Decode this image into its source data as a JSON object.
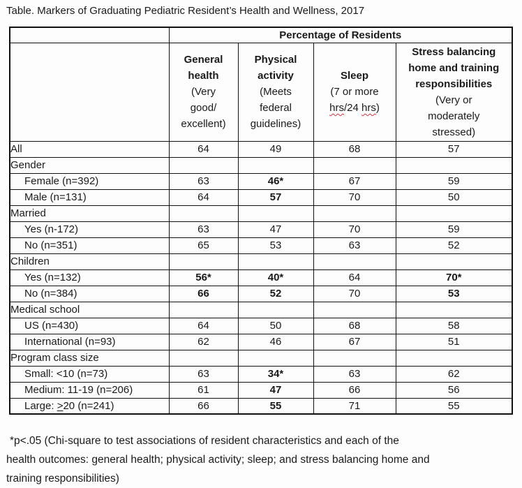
{
  "title": "Table. Markers of Graduating Pediatric Resident’s Health and Wellness, 2017",
  "table": {
    "spanner": "Percentage of Residents",
    "columns": [
      {
        "id": "general-health",
        "title": "General\nhealth",
        "subtitle": "(Very\ngood/\nexcellent)"
      },
      {
        "id": "physical-activity",
        "title": "Physical\nactivity",
        "subtitle": "(Meets\nfederal\nguidelines)"
      },
      {
        "id": "sleep",
        "title": "Sleep",
        "subtitle": "(7 or more\nhrs/24 hrs)",
        "misspelled_word": "hrs"
      },
      {
        "id": "stress-balancing",
        "title": "Stress balancing\nhome and training\nresponsibilities",
        "subtitle": "(Very or\nmoderately\nstressed)"
      }
    ],
    "rows": [
      {
        "label": "All",
        "section": false,
        "indent": false,
        "values": [
          "64",
          "49",
          "68",
          "57"
        ],
        "bold": [
          0,
          0,
          0,
          0
        ]
      },
      {
        "label": "Gender",
        "section": true,
        "indent": false,
        "values": [
          "",
          "",
          "",
          ""
        ],
        "bold": [
          0,
          0,
          0,
          0
        ]
      },
      {
        "label": "Female (n=392)",
        "section": false,
        "indent": true,
        "values": [
          "63",
          "46*",
          "67",
          "59"
        ],
        "bold": [
          0,
          1,
          0,
          0
        ]
      },
      {
        "label": "Male (n=131)",
        "section": false,
        "indent": true,
        "values": [
          "64",
          "57",
          "70",
          "50"
        ],
        "bold": [
          0,
          1,
          0,
          0
        ]
      },
      {
        "label": "Married",
        "section": true,
        "indent": false,
        "values": [
          "",
          "",
          "",
          ""
        ],
        "bold": [
          0,
          0,
          0,
          0
        ]
      },
      {
        "label": "Yes (n-172)",
        "section": false,
        "indent": true,
        "values": [
          "63",
          "47",
          "70",
          "59"
        ],
        "bold": [
          0,
          0,
          0,
          0
        ]
      },
      {
        "label": "No (n=351)",
        "section": false,
        "indent": true,
        "values": [
          "65",
          "53",
          "63",
          "52"
        ],
        "bold": [
          0,
          0,
          0,
          0
        ]
      },
      {
        "label": "Children",
        "section": true,
        "indent": false,
        "values": [
          "",
          "",
          "",
          ""
        ],
        "bold": [
          0,
          0,
          0,
          0
        ]
      },
      {
        "label": "Yes (n=132)",
        "section": false,
        "indent": true,
        "values": [
          "56*",
          "40*",
          "64",
          "70*"
        ],
        "bold": [
          1,
          1,
          0,
          1
        ]
      },
      {
        "label": "No (n=384)",
        "section": false,
        "indent": true,
        "values": [
          "66",
          "52",
          "70",
          "53"
        ],
        "bold": [
          1,
          1,
          0,
          1
        ]
      },
      {
        "label": "Medical school",
        "section": true,
        "indent": false,
        "values": [
          "",
          "",
          "",
          ""
        ],
        "bold": [
          0,
          0,
          0,
          0
        ]
      },
      {
        "label": "US (n=430)",
        "section": false,
        "indent": true,
        "values": [
          "64",
          "50",
          "68",
          "58"
        ],
        "bold": [
          0,
          0,
          0,
          0
        ]
      },
      {
        "label": "International (n=93)",
        "section": false,
        "indent": true,
        "values": [
          "62",
          "46",
          "67",
          "51"
        ],
        "bold": [
          0,
          0,
          0,
          0
        ]
      },
      {
        "label": "Program class size",
        "section": true,
        "indent": false,
        "values": [
          "",
          "",
          "",
          ""
        ],
        "bold": [
          0,
          0,
          0,
          0
        ]
      },
      {
        "label": "Small: <10 (n=73)",
        "section": false,
        "indent": true,
        "values": [
          "63",
          "34*",
          "63",
          "62"
        ],
        "bold": [
          0,
          1,
          0,
          0
        ]
      },
      {
        "label": "Medium: 11-19 (n=206)",
        "section": false,
        "indent": true,
        "values": [
          "61",
          "47",
          "66",
          "56"
        ],
        "bold": [
          0,
          1,
          0,
          0
        ]
      },
      {
        "label": "Large: >20 (n=241)",
        "section": false,
        "indent": true,
        "underline_char": ">",
        "values": [
          "66",
          "55",
          "71",
          "55"
        ],
        "bold": [
          0,
          1,
          0,
          0
        ]
      }
    ]
  },
  "footnote": {
    "lines": [
      "*p<.05 (Chi-square to test associations of resident characteristics and each of the",
      "health outcomes: general health; physical activity; sleep; and stress balancing home and",
      "training responsibilities)"
    ]
  },
  "colors": {
    "text": "#1a1a1a",
    "border": "#111111",
    "spellcheck_red": "#d13438",
    "background": "#fdfdfd"
  }
}
